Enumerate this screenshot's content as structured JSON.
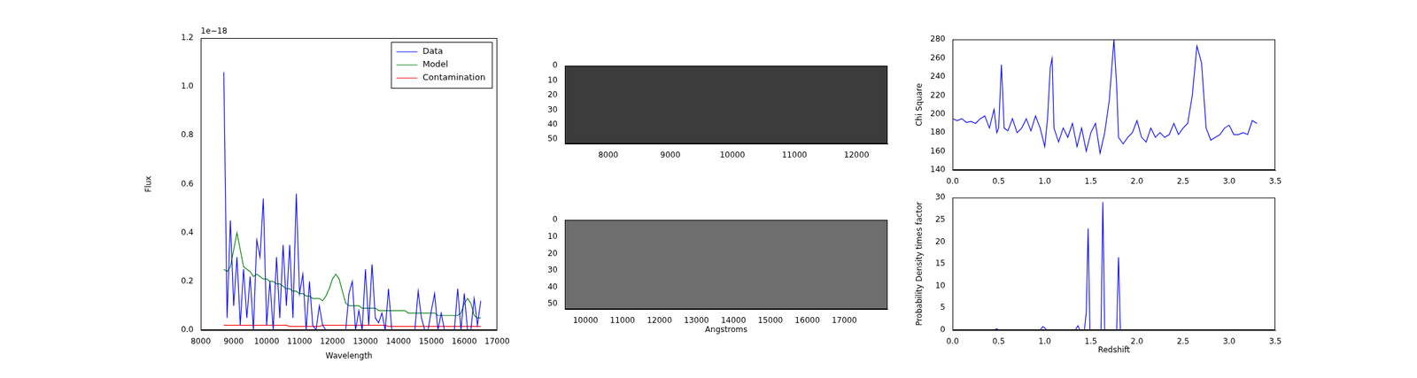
{
  "chart_data": [
    {
      "type": "line",
      "xlabel": "Wavelength",
      "ylabel": "Flux",
      "annotations": [
        "1e−18"
      ],
      "legend": "upper right",
      "grid": false,
      "xlim": [
        8000,
        17000
      ],
      "xticks": [
        8000,
        9000,
        10000,
        11000,
        12000,
        13000,
        14000,
        15000,
        16000,
        17000
      ],
      "ylim": [
        0,
        1.2
      ],
      "yticks": [
        {
          "value": 0,
          "label": "0.0"
        },
        0.2,
        0.4,
        0.6,
        0.8,
        {
          "value": 1,
          "label": "1.0"
        },
        1.2
      ],
      "x": [
        8700,
        8800,
        8900,
        9000,
        9100,
        9200,
        9300,
        9400,
        9500,
        9600,
        9700,
        9800,
        9900,
        10000,
        10100,
        10200,
        10300,
        10400,
        10500,
        10600,
        10700,
        10800,
        10900,
        11000,
        11100,
        11200,
        11300,
        11400,
        11500,
        11600,
        11700,
        11800,
        11900,
        12000,
        12100,
        12200,
        12300,
        12400,
        12500,
        12600,
        12700,
        12800,
        12900,
        13000,
        13100,
        13200,
        13300,
        13400,
        13500,
        13600,
        13700,
        13800,
        13900,
        14000,
        14100,
        14200,
        14300,
        14400,
        14500,
        14600,
        14700,
        14800,
        14900,
        15000,
        15100,
        15200,
        15300,
        15400,
        15500,
        15600,
        15700,
        15800,
        15900,
        16000,
        16100,
        16200,
        16300,
        16400,
        16500
      ],
      "series": [
        {
          "name": "Data",
          "color": "#0000ff",
          "values": [
            1.06,
            0.05,
            0.45,
            0.1,
            0.3,
            0.02,
            0.25,
            0.05,
            0.22,
            0.0,
            0.37,
            0.3,
            0.54,
            0.02,
            0.2,
            0.0,
            0.3,
            0.05,
            0.35,
            0.1,
            0.35,
            0.05,
            0.56,
            0.15,
            0.23,
            0.0,
            0.2,
            0.02,
            0.0,
            0.1,
            0.02,
            0.0,
            0.0,
            0.0,
            0.0,
            0.0,
            0.0,
            0.0,
            0.15,
            0.2,
            0.0,
            0.08,
            0.0,
            0.25,
            0.02,
            0.27,
            0.05,
            0.03,
            0.07,
            0.0,
            0.17,
            0.0,
            0.0,
            0.0,
            0.0,
            0.0,
            0.0,
            0.0,
            0.0,
            0.16,
            0.05,
            0.0,
            0.0,
            0.08,
            0.15,
            0.0,
            0.07,
            0.0,
            0.0,
            0.0,
            0.0,
            0.17,
            0.0,
            0.15,
            0.0,
            0.0,
            0.13,
            0.02,
            0.12
          ]
        },
        {
          "name": "Model",
          "color": "#008000",
          "values": [
            0.25,
            0.24,
            0.26,
            0.33,
            0.4,
            0.33,
            0.26,
            0.25,
            0.24,
            0.22,
            0.23,
            0.22,
            0.21,
            0.21,
            0.2,
            0.2,
            0.19,
            0.19,
            0.18,
            0.17,
            0.17,
            0.16,
            0.16,
            0.15,
            0.15,
            0.14,
            0.14,
            0.13,
            0.13,
            0.13,
            0.12,
            0.14,
            0.17,
            0.21,
            0.23,
            0.21,
            0.16,
            0.11,
            0.1,
            0.1,
            0.1,
            0.1,
            0.09,
            0.09,
            0.09,
            0.09,
            0.09,
            0.08,
            0.08,
            0.08,
            0.08,
            0.08,
            0.08,
            0.08,
            0.08,
            0.08,
            0.07,
            0.07,
            0.07,
            0.07,
            0.07,
            0.07,
            0.07,
            0.07,
            0.07,
            0.06,
            0.06,
            0.06,
            0.06,
            0.06,
            0.06,
            0.06,
            0.07,
            0.11,
            0.13,
            0.11,
            0.06,
            0.05,
            0.05
          ]
        },
        {
          "name": "Contamination",
          "color": "#ff0000",
          "values": [
            0.02,
            0.02,
            0.02,
            0.02,
            0.02,
            0.02,
            0.02,
            0.02,
            0.02,
            0.02,
            0.02,
            0.02,
            0.02,
            0.02,
            0.02,
            0.02,
            0.02,
            0.02,
            0.02,
            0.02,
            0.015,
            0.015,
            0.015,
            0.015,
            0.015,
            0.015,
            0.015,
            0.015,
            0.015,
            0.015,
            0.02,
            0.02,
            0.02,
            0.02,
            0.02,
            0.02,
            0.02,
            0.02,
            0.02,
            0.02,
            0.02,
            0.02,
            0.02,
            0.02,
            0.02,
            0.02,
            0.02,
            0.02,
            0.02,
            0.02,
            0.015,
            0.015,
            0.015,
            0.015,
            0.015,
            0.015,
            0.015,
            0.015,
            0.015,
            0.015,
            0.015,
            0.015,
            0.015,
            0.015,
            0.015,
            0.015,
            0.015,
            0.015,
            0.015,
            0.015,
            0.015,
            0.015,
            0.015,
            0.015,
            0.015,
            0.015,
            0.015,
            0.015,
            0.015
          ]
        }
      ]
    },
    {
      "type": "image",
      "color": "#3c3c3c",
      "grid": false,
      "xlim": [
        7300,
        12500
      ],
      "xticks": [
        8000,
        9000,
        10000,
        11000,
        12000
      ],
      "ylim": [
        0,
        53
      ],
      "yticks": [
        0,
        10,
        20,
        30,
        40,
        50
      ]
    },
    {
      "type": "image",
      "color": "#6e6e6e",
      "grid": false,
      "xlabel": "Angstroms",
      "xlim": [
        9440,
        18170
      ],
      "xticks": [
        10000,
        11000,
        12000,
        13000,
        14000,
        15000,
        16000,
        17000
      ],
      "ylim": [
        0,
        53
      ],
      "yticks": [
        0,
        10,
        20,
        30,
        40,
        50
      ]
    },
    {
      "type": "line",
      "ylabel": "Chi Square",
      "grid": false,
      "xlim": [
        0,
        3.5
      ],
      "xticks": [
        {
          "value": 0,
          "label": "0.0"
        },
        0.5,
        {
          "value": 1,
          "label": "1.0"
        },
        1.5,
        {
          "value": 2,
          "label": "2.0"
        },
        2.5,
        {
          "value": 3,
          "label": "3.0"
        },
        3.5
      ],
      "ylim": [
        140,
        280
      ],
      "yticks": [
        140,
        160,
        180,
        200,
        220,
        240,
        260,
        280
      ],
      "x": [
        0,
        0.05,
        0.1,
        0.15,
        0.2,
        0.25,
        0.3,
        0.35,
        0.4,
        0.45,
        0.48,
        0.5,
        0.53,
        0.56,
        0.6,
        0.65,
        0.7,
        0.75,
        0.8,
        0.85,
        0.9,
        0.95,
        1.0,
        1.03,
        1.06,
        1.08,
        1.1,
        1.15,
        1.2,
        1.25,
        1.3,
        1.35,
        1.4,
        1.45,
        1.5,
        1.55,
        1.6,
        1.65,
        1.7,
        1.75,
        1.78,
        1.8,
        1.85,
        1.9,
        1.95,
        2.0,
        2.05,
        2.1,
        2.15,
        2.2,
        2.25,
        2.3,
        2.35,
        2.4,
        2.45,
        2.5,
        2.55,
        2.6,
        2.65,
        2.7,
        2.75,
        2.8,
        2.85,
        2.9,
        2.95,
        3.0,
        3.05,
        3.1,
        3.15,
        3.2,
        3.25,
        3.3
      ],
      "series": [
        {
          "color": "#0000ff",
          "values": [
            195,
            193,
            195,
            191,
            192,
            190,
            195,
            198,
            185,
            205,
            180,
            185,
            253,
            185,
            182,
            195,
            180,
            185,
            195,
            182,
            198,
            185,
            165,
            195,
            250,
            260,
            185,
            170,
            185,
            175,
            190,
            165,
            185,
            160,
            180,
            190,
            158,
            180,
            215,
            280,
            230,
            175,
            168,
            175,
            180,
            193,
            175,
            170,
            185,
            175,
            180,
            175,
            178,
            190,
            178,
            185,
            190,
            220,
            273,
            255,
            185,
            172,
            175,
            178,
            185,
            188,
            178,
            178,
            180,
            178,
            193,
            190
          ]
        }
      ]
    },
    {
      "type": "line",
      "xlabel": "Redshift",
      "ylabel": "Probability Density times factor",
      "grid": false,
      "xlim": [
        0,
        3.5
      ],
      "xticks": [
        {
          "value": 0,
          "label": "0.0"
        },
        0.5,
        {
          "value": 1,
          "label": "1.0"
        },
        1.5,
        {
          "value": 2,
          "label": "2.0"
        },
        2.5,
        {
          "value": 3,
          "label": "3.0"
        },
        3.5
      ],
      "ylim": [
        0,
        30
      ],
      "yticks": [
        0,
        5,
        10,
        15,
        20,
        25,
        30
      ],
      "x": [
        0,
        0.45,
        0.48,
        0.5,
        0.95,
        0.98,
        1.0,
        1.02,
        1.33,
        1.36,
        1.38,
        1.43,
        1.45,
        1.47,
        1.49,
        1.61,
        1.63,
        1.65,
        1.78,
        1.8,
        1.82,
        3.3
      ],
      "series": [
        {
          "color": "#0000ff",
          "values": [
            0,
            0,
            0.3,
            0,
            0,
            0.8,
            0.5,
            0,
            0,
            1,
            0,
            0,
            4,
            23,
            0,
            0,
            29,
            0,
            0,
            16.5,
            0,
            0
          ]
        }
      ]
    }
  ]
}
